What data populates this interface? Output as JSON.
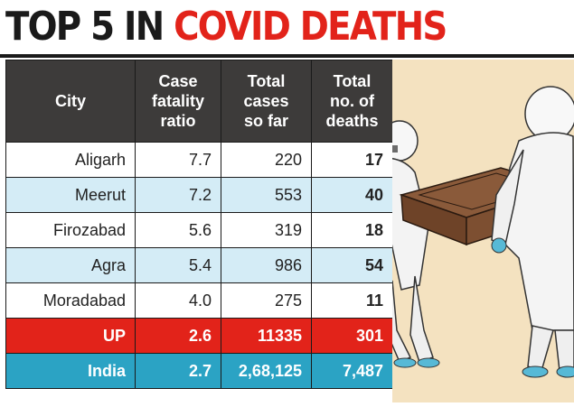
{
  "title": {
    "part1": "TOP 5 IN ",
    "part2": "COVID DEATHS"
  },
  "table": {
    "headers": {
      "city": "City",
      "cfr": [
        "Case",
        "fatality",
        "ratio"
      ],
      "cases": [
        "Total",
        "cases",
        "so far"
      ],
      "deaths": [
        "Total",
        "no. of",
        "deaths"
      ]
    },
    "rows": [
      {
        "city": "Aligarh",
        "cfr": "7.7",
        "cases": "220",
        "deaths": "17"
      },
      {
        "city": "Meerut",
        "cfr": "7.2",
        "cases": "553",
        "deaths": "40"
      },
      {
        "city": "Firozabad",
        "cfr": "5.6",
        "cases": "319",
        "deaths": "18"
      },
      {
        "city": "Agra",
        "cfr": "5.4",
        "cases": "986",
        "deaths": "54"
      },
      {
        "city": "Moradabad",
        "cfr": "4.0",
        "cases": "275",
        "deaths": "11"
      },
      {
        "city": "UP",
        "cfr": "2.6",
        "cases": "11335",
        "deaths": "301"
      },
      {
        "city": "India",
        "cfr": "2.7",
        "cases": "2,68,125",
        "deaths": "7,487"
      }
    ]
  },
  "colors": {
    "red": "#e2231a",
    "header_dark": "#3d3b3a",
    "row_light": "#d4ecf6",
    "india_blue": "#2ba3c4",
    "illustration_bg": "#f4e2c0"
  }
}
